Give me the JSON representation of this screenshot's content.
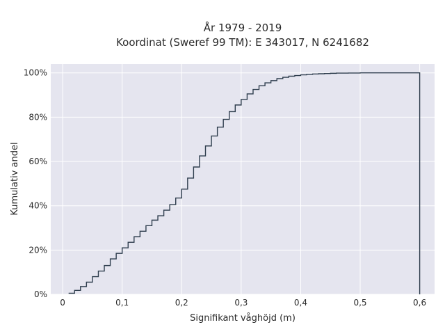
{
  "chart_data": {
    "type": "line",
    "line_shape": "step",
    "title_line1": "År 1979 - 2019",
    "title_line2": "Koordinat (Sweref 99 TM): E 343017, N 6241682",
    "xlabel": "Signifikant våghöjd (m)",
    "ylabel": "Kumulativ andel",
    "xlim": [
      -0.02,
      0.625
    ],
    "ylim": [
      0,
      1.04
    ],
    "x_ticks": [
      0,
      0.1,
      0.2,
      0.3,
      0.4,
      0.5,
      0.6
    ],
    "x_tick_labels": [
      "0",
      "0,1",
      "0,2",
      "0,3",
      "0,4",
      "0,5",
      "0,6"
    ],
    "y_ticks": [
      0,
      0.2,
      0.4,
      0.6,
      0.8,
      1.0
    ],
    "y_tick_labels": [
      "0%",
      "20%",
      "40%",
      "60%",
      "80%",
      "100%"
    ],
    "grid": true,
    "colors": {
      "line": "#2f3e4e",
      "plot_bg": "#e5e5ef",
      "grid": "#ffffff"
    },
    "series": [
      {
        "x": [
          0.01,
          0.02,
          0.03,
          0.04,
          0.05,
          0.06,
          0.07,
          0.08,
          0.09,
          0.1,
          0.11,
          0.12,
          0.13,
          0.14,
          0.15,
          0.16,
          0.17,
          0.18,
          0.19,
          0.2,
          0.21,
          0.22,
          0.23,
          0.24,
          0.25,
          0.26,
          0.27,
          0.28,
          0.29,
          0.3,
          0.31,
          0.32,
          0.33,
          0.34,
          0.35,
          0.36,
          0.37,
          0.38,
          0.39,
          0.4,
          0.41,
          0.42,
          0.43,
          0.44,
          0.45,
          0.46,
          0.48,
          0.5,
          0.55,
          0.6,
          0.6
        ],
        "y": [
          0.005,
          0.018,
          0.035,
          0.055,
          0.08,
          0.105,
          0.13,
          0.16,
          0.185,
          0.21,
          0.235,
          0.26,
          0.285,
          0.31,
          0.335,
          0.355,
          0.38,
          0.405,
          0.435,
          0.475,
          0.525,
          0.575,
          0.625,
          0.67,
          0.715,
          0.755,
          0.79,
          0.825,
          0.855,
          0.88,
          0.905,
          0.925,
          0.942,
          0.955,
          0.965,
          0.974,
          0.98,
          0.985,
          0.988,
          0.991,
          0.993,
          0.995,
          0.996,
          0.997,
          0.998,
          0.999,
          0.9995,
          1.0,
          1.0,
          1.0,
          0.0
        ]
      }
    ]
  }
}
